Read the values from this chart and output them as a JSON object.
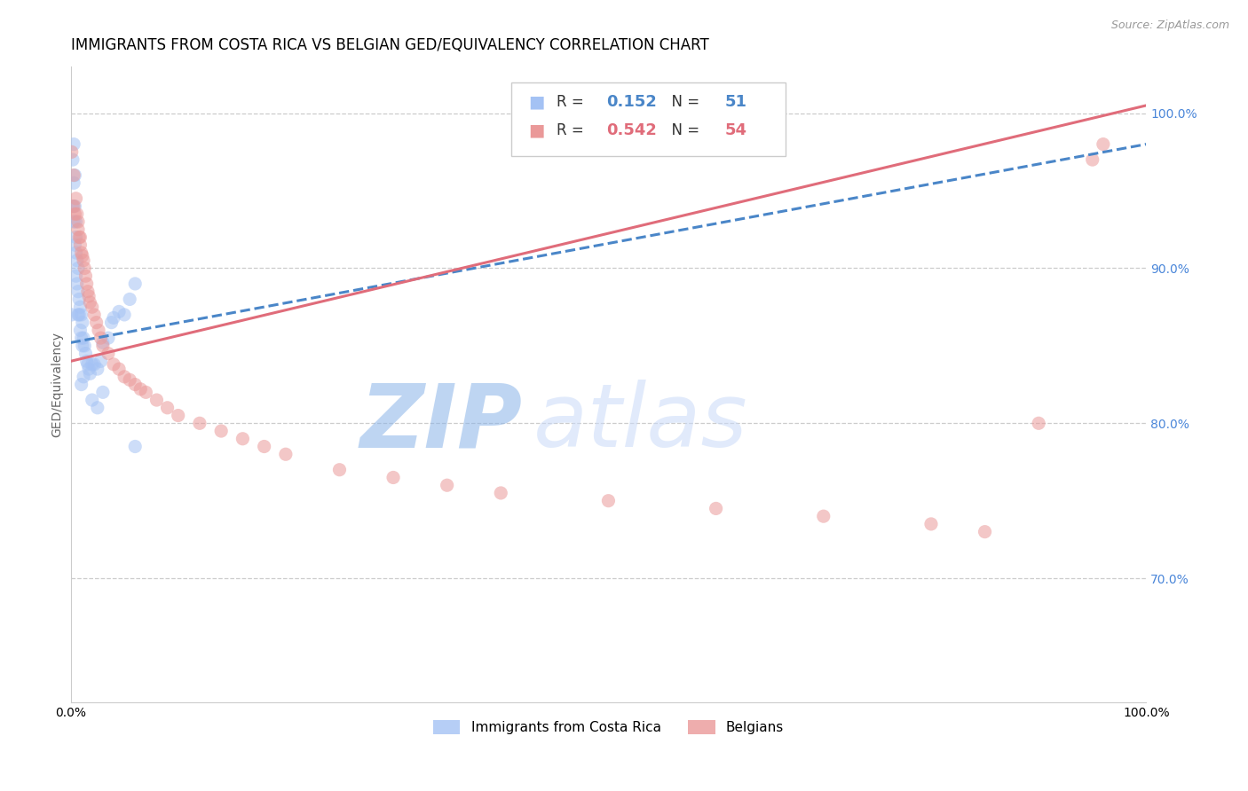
{
  "title": "IMMIGRANTS FROM COSTA RICA VS BELGIAN GED/EQUIVALENCY CORRELATION CHART",
  "source": "Source: ZipAtlas.com",
  "ylabel": "GED/Equivalency",
  "xlim": [
    0.0,
    1.0
  ],
  "ylim": [
    0.62,
    1.03
  ],
  "y_ticks_right": [
    0.7,
    0.8,
    0.9,
    1.0
  ],
  "y_tick_labels_right": [
    "70.0%",
    "80.0%",
    "90.0%",
    "100.0%"
  ],
  "legend_blue_R": "0.152",
  "legend_blue_N": "51",
  "legend_pink_R": "0.542",
  "legend_pink_N": "54",
  "blue_color": "#a4c2f4",
  "pink_color": "#ea9999",
  "blue_line_color": "#4a86c8",
  "pink_line_color": "#e06c7a",
  "right_axis_color": "#4a86d9",
  "background_color": "#ffffff",
  "watermark_zip": "ZIP",
  "watermark_atlas": "atlas",
  "watermark_color_zip": "#c9daf8",
  "watermark_color_atlas": "#c9daf8",
  "grid_color": "#cccccc",
  "title_fontsize": 12,
  "axis_label_fontsize": 10,
  "tick_fontsize": 10,
  "scatter_size": 120,
  "scatter_alpha": 0.55,
  "line_width": 2.2,
  "blue_scatter_x": [
    0.001,
    0.002,
    0.002,
    0.003,
    0.003,
    0.003,
    0.004,
    0.004,
    0.004,
    0.005,
    0.005,
    0.005,
    0.005,
    0.006,
    0.006,
    0.007,
    0.007,
    0.007,
    0.008,
    0.008,
    0.009,
    0.009,
    0.01,
    0.01,
    0.011,
    0.011,
    0.012,
    0.013,
    0.014,
    0.015,
    0.016,
    0.017,
    0.018,
    0.02,
    0.022,
    0.025,
    0.028,
    0.03,
    0.035,
    0.038,
    0.04,
    0.045,
    0.05,
    0.055,
    0.06,
    0.03,
    0.025,
    0.02,
    0.012,
    0.01,
    0.06
  ],
  "blue_scatter_y": [
    0.87,
    0.97,
    0.94,
    0.98,
    0.955,
    0.93,
    0.96,
    0.94,
    0.915,
    0.93,
    0.92,
    0.91,
    0.895,
    0.905,
    0.89,
    0.9,
    0.885,
    0.87,
    0.88,
    0.87,
    0.875,
    0.86,
    0.87,
    0.855,
    0.865,
    0.85,
    0.855,
    0.85,
    0.845,
    0.84,
    0.838,
    0.835,
    0.832,
    0.838,
    0.838,
    0.835,
    0.84,
    0.852,
    0.855,
    0.865,
    0.868,
    0.872,
    0.87,
    0.88,
    0.89,
    0.82,
    0.81,
    0.815,
    0.83,
    0.825,
    0.785
  ],
  "pink_scatter_x": [
    0.001,
    0.003,
    0.003,
    0.004,
    0.005,
    0.006,
    0.007,
    0.007,
    0.008,
    0.009,
    0.009,
    0.01,
    0.011,
    0.012,
    0.013,
    0.014,
    0.015,
    0.016,
    0.017,
    0.018,
    0.02,
    0.022,
    0.024,
    0.026,
    0.028,
    0.03,
    0.035,
    0.04,
    0.045,
    0.05,
    0.055,
    0.06,
    0.065,
    0.07,
    0.08,
    0.09,
    0.1,
    0.12,
    0.14,
    0.16,
    0.18,
    0.2,
    0.25,
    0.3,
    0.35,
    0.4,
    0.5,
    0.6,
    0.7,
    0.8,
    0.85,
    0.9,
    0.95,
    0.96
  ],
  "pink_scatter_y": [
    0.975,
    0.96,
    0.94,
    0.935,
    0.945,
    0.935,
    0.93,
    0.925,
    0.92,
    0.92,
    0.915,
    0.91,
    0.908,
    0.905,
    0.9,
    0.895,
    0.89,
    0.885,
    0.882,
    0.878,
    0.875,
    0.87,
    0.865,
    0.86,
    0.855,
    0.85,
    0.845,
    0.838,
    0.835,
    0.83,
    0.828,
    0.825,
    0.822,
    0.82,
    0.815,
    0.81,
    0.805,
    0.8,
    0.795,
    0.79,
    0.785,
    0.78,
    0.77,
    0.765,
    0.76,
    0.755,
    0.75,
    0.745,
    0.74,
    0.735,
    0.73,
    0.8,
    0.97,
    0.98
  ],
  "blue_line_x": [
    0.0,
    1.0
  ],
  "blue_line_y": [
    0.852,
    0.98
  ],
  "pink_line_x": [
    0.0,
    1.0
  ],
  "pink_line_y": [
    0.84,
    1.005
  ]
}
